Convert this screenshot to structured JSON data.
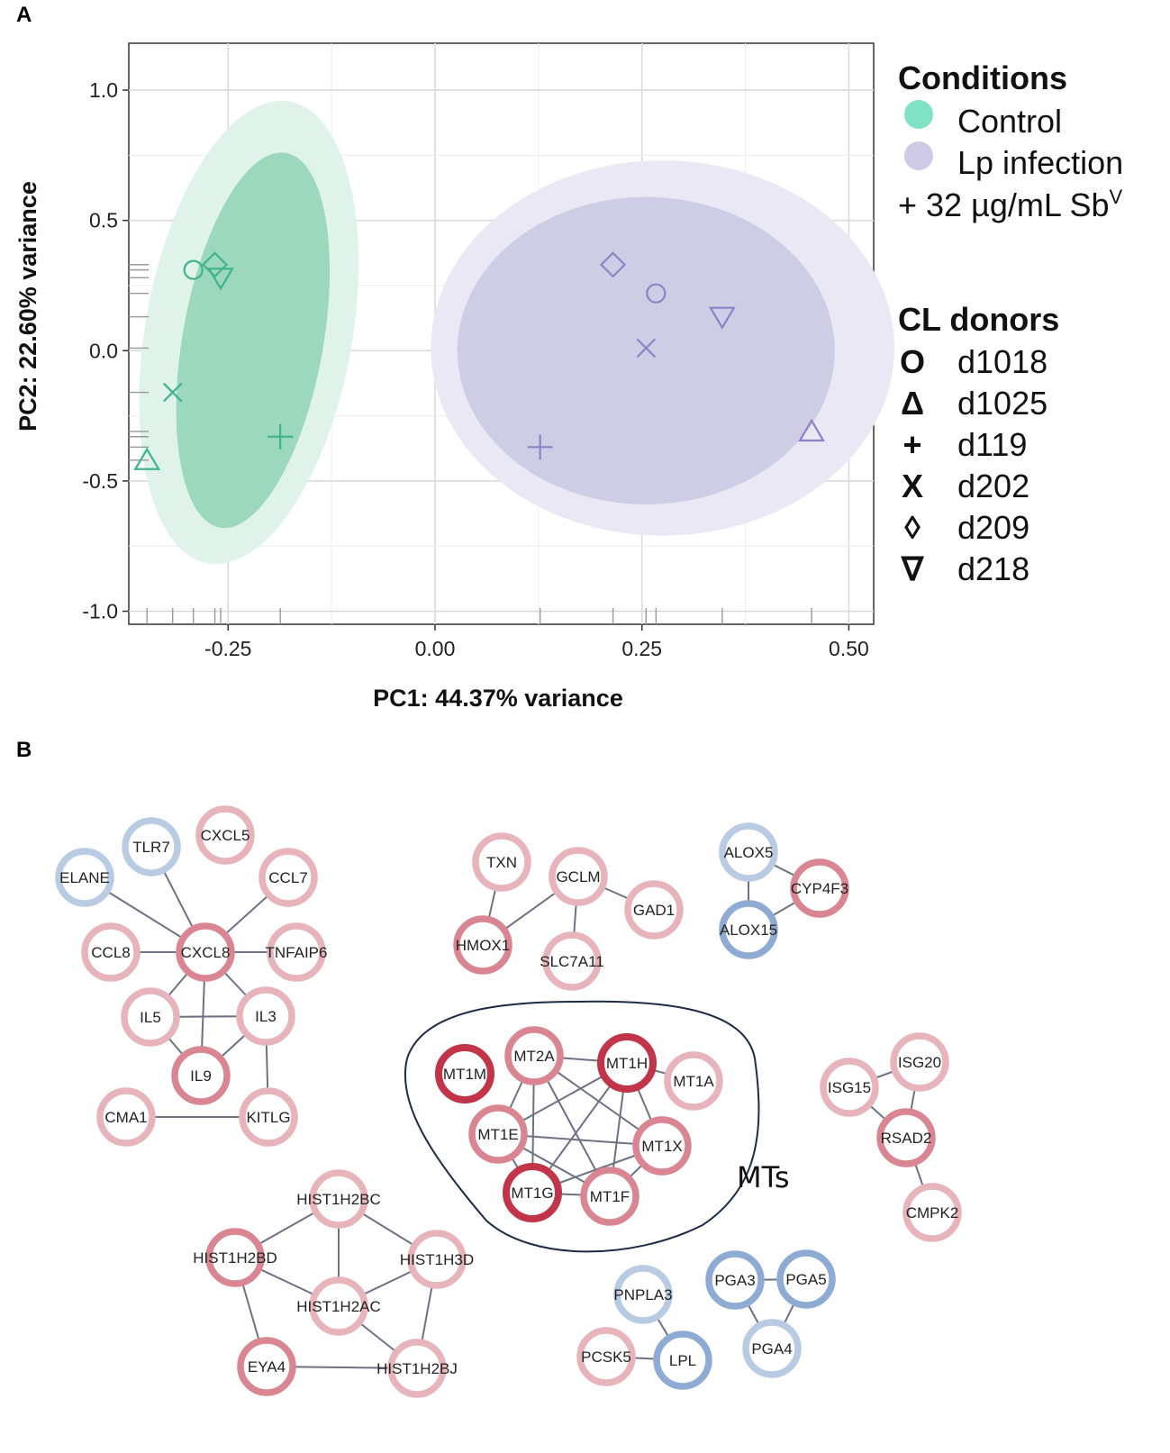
{
  "panel_a_letter": "A",
  "panel_b_letter": "B",
  "chart_data": [
    {
      "type": "scatter",
      "title": "",
      "xlabel": "PC1: 44.37% variance",
      "ylabel": "PC2: 22.60% variance",
      "xlim": [
        -0.37,
        0.53
      ],
      "ylim": [
        -1.05,
        1.18
      ],
      "xticks": [
        -0.25,
        0.0,
        0.25,
        0.5
      ],
      "xtick_labels": [
        "-0.25",
        "0.00",
        "0.25",
        "0.50"
      ],
      "yticks": [
        1.0,
        0.5,
        0.0,
        -0.5,
        -1.0
      ],
      "ytick_labels": [
        "1.0",
        "0.5",
        "0.0",
        "-0.5",
        "-1.0"
      ],
      "grid": true,
      "legend_position": "right",
      "legend": {
        "conditions_title": "Conditions",
        "conditions": [
          {
            "label": "Control",
            "color": "#7fe3c3"
          },
          {
            "label": "Lp infection",
            "color": "#cfcbe6"
          }
        ],
        "treatment_label": "+ 32 µg/mL Sb",
        "treatment_superscript": "V",
        "donors_title": "CL donors",
        "donors": [
          {
            "label": "d1018",
            "symbol": "O"
          },
          {
            "label": "d1025",
            "symbol": "Δ"
          },
          {
            "label": "d119",
            "symbol": "+"
          },
          {
            "label": "d202",
            "symbol": "X"
          },
          {
            "label": "d209",
            "symbol": "◊"
          },
          {
            "label": "d218",
            "symbol": "∇"
          }
        ]
      },
      "series": [
        {
          "name": "Control",
          "color": "#3fb38c",
          "ellipse_inner": {
            "cx": -0.22,
            "cy": 0.04,
            "rx": 0.085,
            "ry": 0.73,
            "angle_deg": 10
          },
          "ellipse_outer": {
            "cx": -0.225,
            "cy": 0.07,
            "rx": 0.125,
            "ry": 0.9,
            "angle_deg": 10
          },
          "points": [
            {
              "donor": "d1018",
              "shape": "circle",
              "x": -0.292,
              "y": 0.31
            },
            {
              "donor": "d209",
              "shape": "diamond",
              "x": -0.266,
              "y": 0.33
            },
            {
              "donor": "d218",
              "shape": "triangle-down",
              "x": -0.259,
              "y": 0.28
            },
            {
              "donor": "d202",
              "shape": "x",
              "x": -0.317,
              "y": -0.16
            },
            {
              "donor": "d1025",
              "shape": "triangle",
              "x": -0.348,
              "y": -0.42
            },
            {
              "donor": "d119",
              "shape": "plus",
              "x": -0.187,
              "y": -0.33
            }
          ]
        },
        {
          "name": "Lp infection",
          "color": "#8b84c4",
          "ellipse_inner": {
            "cx": 0.255,
            "cy": 0.0,
            "rx": 0.228,
            "ry": 0.59,
            "angle_deg": 0
          },
          "ellipse_outer": {
            "cx": 0.275,
            "cy": 0.01,
            "rx": 0.28,
            "ry": 0.72,
            "angle_deg": 0
          },
          "points": [
            {
              "donor": "d209",
              "shape": "diamond",
              "x": 0.215,
              "y": 0.33
            },
            {
              "donor": "d1018",
              "shape": "circle",
              "x": 0.267,
              "y": 0.22
            },
            {
              "donor": "d218",
              "shape": "triangle-down",
              "x": 0.347,
              "y": 0.13
            },
            {
              "donor": "d202",
              "shape": "x",
              "x": 0.255,
              "y": 0.01
            },
            {
              "donor": "d1025",
              "shape": "triangle",
              "x": 0.455,
              "y": -0.31
            },
            {
              "donor": "d119",
              "shape": "plus",
              "x": 0.127,
              "y": -0.37
            }
          ]
        }
      ]
    },
    {
      "type": "network",
      "annotation": "MTs",
      "colors": {
        "red_light": "#e8b4bb",
        "red_mid": "#d98692",
        "red_dark": "#c23448",
        "blue_light": "#b8cbe3",
        "blue_mid": "#8eacd3"
      },
      "nodes": [
        {
          "id": "TLR7",
          "label": "TLR7",
          "color": "blue_light"
        },
        {
          "id": "CXCL5",
          "label": "CXCL5",
          "color": "red_light"
        },
        {
          "id": "ELANE",
          "label": "ELANE",
          "color": "blue_light"
        },
        {
          "id": "CCL7",
          "label": "CCL7",
          "color": "red_light"
        },
        {
          "id": "CCL8",
          "label": "CCL8",
          "color": "red_light"
        },
        {
          "id": "CXCL8",
          "label": "CXCL8",
          "color": "red_mid"
        },
        {
          "id": "TNFAIP6",
          "label": "TNFAIP6",
          "color": "red_light"
        },
        {
          "id": "IL5",
          "label": "IL5",
          "color": "red_light"
        },
        {
          "id": "IL3",
          "label": "IL3",
          "color": "red_light"
        },
        {
          "id": "IL9",
          "label": "IL9",
          "color": "red_mid"
        },
        {
          "id": "CMA1",
          "label": "CMA1",
          "color": "red_light"
        },
        {
          "id": "KITLG",
          "label": "KITLG",
          "color": "red_light"
        },
        {
          "id": "TXN",
          "label": "TXN",
          "color": "red_light"
        },
        {
          "id": "GCLM",
          "label": "GCLM",
          "color": "red_light"
        },
        {
          "id": "GAD1",
          "label": "GAD1",
          "color": "red_light"
        },
        {
          "id": "HMOX1",
          "label": "HMOX1",
          "color": "red_mid"
        },
        {
          "id": "SLC7A11",
          "label": "SLC7A11",
          "color": "red_light"
        },
        {
          "id": "ALOX5",
          "label": "ALOX5",
          "color": "blue_light"
        },
        {
          "id": "CYP4F3",
          "label": "CYP4F3",
          "color": "red_mid"
        },
        {
          "id": "ALOX15",
          "label": "ALOX15",
          "color": "blue_mid"
        },
        {
          "id": "MT1M",
          "label": "MT1M",
          "color": "red_dark"
        },
        {
          "id": "MT2A",
          "label": "MT2A",
          "color": "red_mid"
        },
        {
          "id": "MT1H",
          "label": "MT1H",
          "color": "red_dark"
        },
        {
          "id": "MT1A",
          "label": "MT1A",
          "color": "red_light"
        },
        {
          "id": "MT1E",
          "label": "MT1E",
          "color": "red_mid"
        },
        {
          "id": "MT1X",
          "label": "MT1X",
          "color": "red_mid"
        },
        {
          "id": "MT1G",
          "label": "MT1G",
          "color": "red_dark"
        },
        {
          "id": "MT1F",
          "label": "MT1F",
          "color": "red_mid"
        },
        {
          "id": "ISG15",
          "label": "ISG15",
          "color": "red_light"
        },
        {
          "id": "ISG20",
          "label": "ISG20",
          "color": "red_light"
        },
        {
          "id": "RSAD2",
          "label": "RSAD2",
          "color": "red_mid"
        },
        {
          "id": "CMPK2",
          "label": "CMPK2",
          "color": "red_light"
        },
        {
          "id": "HIST1H2BC",
          "label": "HIST1H2BC",
          "color": "red_light"
        },
        {
          "id": "HIST1H2BD",
          "label": "HIST1H2BD",
          "color": "red_mid"
        },
        {
          "id": "HIST1H3D",
          "label": "HIST1H3D",
          "color": "red_light"
        },
        {
          "id": "HIST1H2AC",
          "label": "HIST1H2AC",
          "color": "red_light"
        },
        {
          "id": "EYA4",
          "label": "EYA4",
          "color": "red_mid"
        },
        {
          "id": "HIST1H2BJ",
          "label": "HIST1H2BJ",
          "color": "red_light"
        },
        {
          "id": "PNPLA3",
          "label": "PNPLA3",
          "color": "blue_light"
        },
        {
          "id": "PCSK5",
          "label": "PCSK5",
          "color": "red_light"
        },
        {
          "id": "LPL",
          "label": "LPL",
          "color": "blue_mid"
        },
        {
          "id": "PGA3",
          "label": "PGA3",
          "color": "blue_mid"
        },
        {
          "id": "PGA5",
          "label": "PGA5",
          "color": "blue_mid"
        },
        {
          "id": "PGA4",
          "label": "PGA4",
          "color": "blue_light"
        }
      ],
      "edges": [
        [
          "TLR7",
          "CXCL8"
        ],
        [
          "ELANE",
          "CXCL8"
        ],
        [
          "CCL7",
          "CXCL8"
        ],
        [
          "CCL8",
          "CXCL8"
        ],
        [
          "TNFAIP6",
          "CXCL8"
        ],
        [
          "CXCL8",
          "IL5"
        ],
        [
          "CXCL8",
          "IL9"
        ],
        [
          "CXCL8",
          "IL3"
        ],
        [
          "IL5",
          "IL3"
        ],
        [
          "IL5",
          "IL9"
        ],
        [
          "IL3",
          "IL9"
        ],
        [
          "IL3",
          "KITLG"
        ],
        [
          "CMA1",
          "KITLG"
        ],
        [
          "TXN",
          "HMOX1"
        ],
        [
          "GCLM",
          "HMOX1"
        ],
        [
          "GCLM",
          "GAD1"
        ],
        [
          "GCLM",
          "SLC7A11"
        ],
        [
          "ALOX5",
          "ALOX15"
        ],
        [
          "ALOX5",
          "CYP4F3"
        ],
        [
          "CYP4F3",
          "ALOX15"
        ],
        [
          "MT2A",
          "MT1H"
        ],
        [
          "MT2A",
          "MT1E"
        ],
        [
          "MT2A",
          "MT1X"
        ],
        [
          "MT2A",
          "MT1G"
        ],
        [
          "MT2A",
          "MT1F"
        ],
        [
          "MT1H",
          "MT1E"
        ],
        [
          "MT1H",
          "MT1X"
        ],
        [
          "MT1H",
          "MT1G"
        ],
        [
          "MT1H",
          "MT1F"
        ],
        [
          "MT1H",
          "MT1A"
        ],
        [
          "MT1E",
          "MT1X"
        ],
        [
          "MT1E",
          "MT1G"
        ],
        [
          "MT1E",
          "MT1F"
        ],
        [
          "MT1X",
          "MT1G"
        ],
        [
          "MT1X",
          "MT1F"
        ],
        [
          "MT1G",
          "MT1F"
        ],
        [
          "ISG15",
          "ISG20"
        ],
        [
          "ISG15",
          "RSAD2"
        ],
        [
          "ISG20",
          "RSAD2"
        ],
        [
          "RSAD2",
          "CMPK2"
        ],
        [
          "HIST1H2BC",
          "HIST1H2BD"
        ],
        [
          "HIST1H2BC",
          "HIST1H3D"
        ],
        [
          "HIST1H2BC",
          "HIST1H2AC"
        ],
        [
          "HIST1H2BD",
          "HIST1H2AC"
        ],
        [
          "HIST1H2BD",
          "EYA4"
        ],
        [
          "HIST1H3D",
          "HIST1H2AC"
        ],
        [
          "HIST1H3D",
          "HIST1H2BJ"
        ],
        [
          "HIST1H2AC",
          "HIST1H2BJ"
        ],
        [
          "EYA4",
          "HIST1H2BJ"
        ],
        [
          "PNPLA3",
          "LPL"
        ],
        [
          "PCSK5",
          "LPL"
        ],
        [
          "PGA3",
          "PGA5"
        ],
        [
          "PGA3",
          "PGA4"
        ],
        [
          "PGA5",
          "PGA4"
        ]
      ]
    }
  ]
}
